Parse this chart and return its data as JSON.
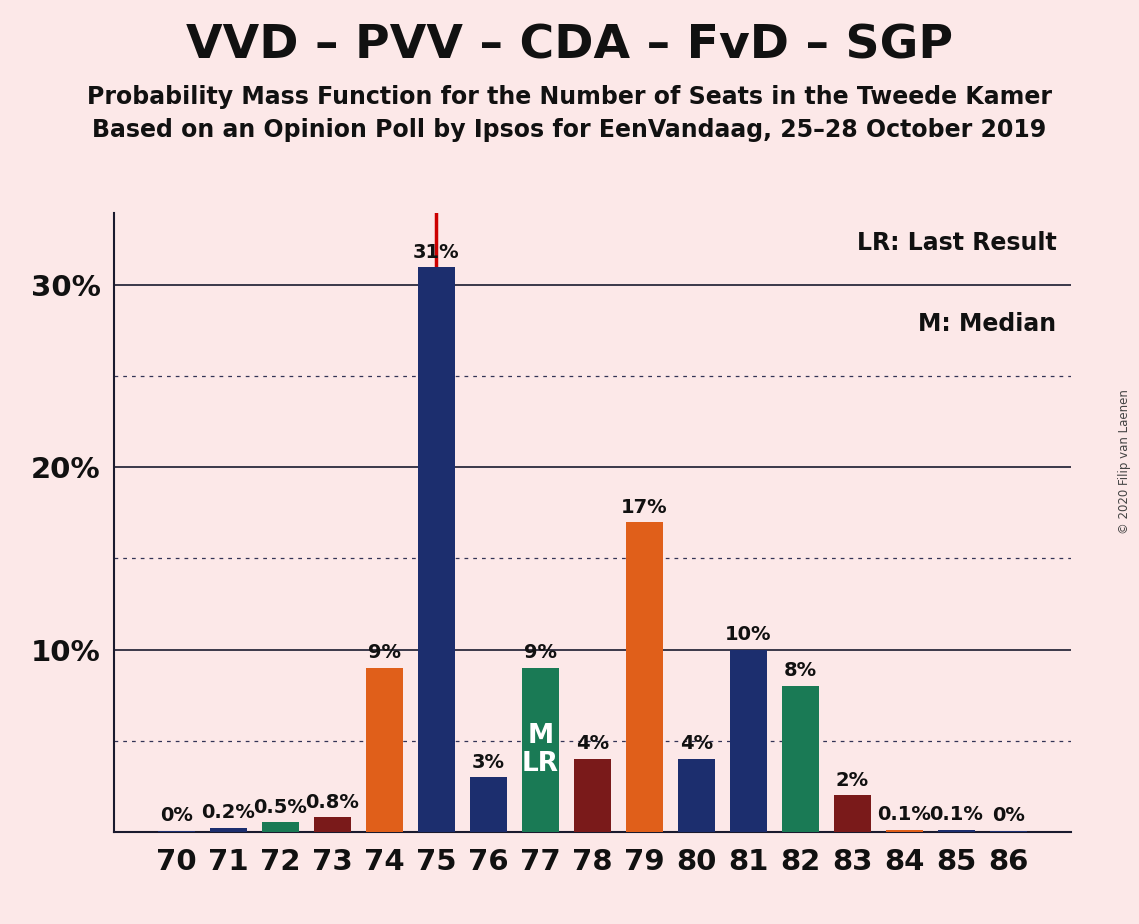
{
  "title": "VVD – PVV – CDA – FvD – SGP",
  "subtitle1": "Probability Mass Function for the Number of Seats in the Tweede Kamer",
  "subtitle2": "Based on an Opinion Poll by Ipsos for EenVandaag, 25–28 October 2019",
  "copyright": "© 2020 Filip van Laenen",
  "legend_lr": "LR: Last Result",
  "legend_m": "M: Median",
  "background_color": "#fce8e8",
  "seats": [
    70,
    71,
    72,
    73,
    74,
    75,
    76,
    77,
    78,
    79,
    80,
    81,
    82,
    83,
    84,
    85,
    86
  ],
  "values": [
    0.05,
    0.2,
    0.5,
    0.8,
    9.0,
    31.0,
    3.0,
    9.0,
    4.0,
    17.0,
    4.0,
    10.0,
    8.0,
    2.0,
    0.1,
    0.1,
    0.05
  ],
  "labels": [
    "0%",
    "0.2%",
    "0.5%",
    "0.8%",
    "9%",
    "31%",
    "3%",
    "9%",
    "4%",
    "17%",
    "4%",
    "10%",
    "8%",
    "2%",
    "0.1%",
    "0.1%",
    "0%"
  ],
  "bar_colors": [
    "#1c2e6e",
    "#1c2e6e",
    "#1a7a55",
    "#7a1a1a",
    "#e05f1a",
    "#1c2e6e",
    "#1c2e6e",
    "#1a7a55",
    "#7a1a1a",
    "#e05f1a",
    "#1c2e6e",
    "#1c2e6e",
    "#1a7a55",
    "#7a1a1a",
    "#e05f1a",
    "#1c2e6e",
    "#1c2e6e"
  ],
  "lr_seat": 75,
  "median_seat": 77,
  "bar_width": 0.72,
  "ylim": [
    0,
    34
  ],
  "ytick_labels": [
    "10%",
    "20%",
    "30%"
  ],
  "ytick_values": [
    10,
    20,
    30
  ],
  "solid_lines": [
    10,
    20,
    30
  ],
  "dotted_lines": [
    5,
    15,
    25
  ],
  "title_fontsize": 34,
  "subtitle_fontsize": 17,
  "label_fontsize": 14,
  "tick_fontsize": 21,
  "legend_fontsize": 17,
  "ml_fontsize": 19
}
